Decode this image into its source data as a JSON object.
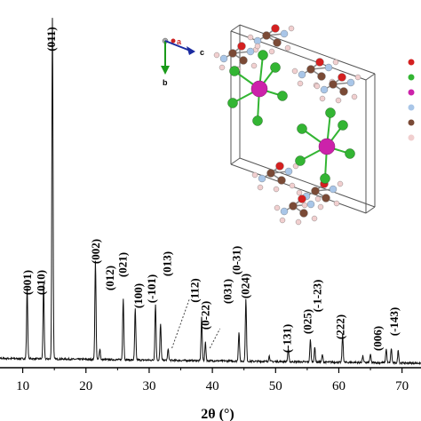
{
  "chart_data": {
    "type": "line",
    "xlabel": "2θ (°)",
    "ylabel": "",
    "xlim": [
      5,
      73
    ],
    "ylim": [
      0,
      100
    ],
    "x_ticks": [
      10,
      20,
      30,
      40,
      50,
      60,
      70
    ],
    "x_tick_labels": [
      "10",
      "20",
      "30",
      "40",
      "50",
      "60",
      "70"
    ],
    "grid": false,
    "peaks": [
      {
        "x": 10.7,
        "y": 19.5,
        "label": "(001)"
      },
      {
        "x": 13.3,
        "y": 20.5,
        "label": "(010)"
      },
      {
        "x": 14.7,
        "y": 94.0,
        "label": "(011)"
      },
      {
        "x": 21.5,
        "y": 27.0,
        "label": "(002)"
      },
      {
        "x": 22.2,
        "y": 3.0,
        "label": ""
      },
      {
        "x": 25.9,
        "y": 17.0,
        "label": "(012)"
      },
      {
        "x": 27.8,
        "y": 14.0,
        "label": "(021)"
      },
      {
        "x": 31.0,
        "y": 15.5,
        "label": "(100)"
      },
      {
        "x": 31.8,
        "y": 10.0,
        "label": "(-101)"
      },
      {
        "x": 33.0,
        "y": 3.0,
        "label": "(013)"
      },
      {
        "x": 38.3,
        "y": 12.0,
        "label": "(112)"
      },
      {
        "x": 38.9,
        "y": 5.0,
        "label": "(0-22)"
      },
      {
        "x": 44.2,
        "y": 8.0,
        "label": "(031)"
      },
      {
        "x": 45.3,
        "y": 17.0,
        "label": "(0-31)"
      },
      {
        "x": 49.0,
        "y": 1.5,
        "label": ""
      },
      {
        "x": 52.0,
        "y": 3.5,
        "label": "(024)"
      },
      {
        "x": 55.5,
        "y": 6.0,
        "label": "(-131)"
      },
      {
        "x": 56.2,
        "y": 4.0,
        "label": "(025)"
      },
      {
        "x": 57.4,
        "y": 2.0,
        "label": ""
      },
      {
        "x": 60.6,
        "y": 7.5,
        "label": "(-1-23)"
      },
      {
        "x": 63.8,
        "y": 1.8,
        "label": ""
      },
      {
        "x": 65.0,
        "y": 2.2,
        "label": ""
      },
      {
        "x": 67.5,
        "y": 3.8,
        "label": "(222)"
      },
      {
        "x": 68.3,
        "y": 4.0,
        "label": "(006)"
      },
      {
        "x": 69.4,
        "y": 3.5,
        "label": "(-143)"
      }
    ],
    "label_order": [
      "(001)",
      "(010)",
      "(011)",
      "(002)",
      "(012)",
      "(021)",
      "(100)",
      "(-101)",
      "(013)",
      "(112)",
      "(0-22)",
      "(031)",
      "(0-31)",
      "(024)",
      "(-131)",
      "(025)",
      "(-1-23)",
      "(222)",
      "(006)",
      "(-143)"
    ]
  },
  "inset": {
    "axes": {
      "a": "a",
      "b": "b",
      "c": "c"
    },
    "legend_colors": [
      "#d42020",
      "#33b533",
      "#cc22aa",
      "#a9c6e8",
      "#7a4a36",
      "#f1cfcf"
    ],
    "atom_colors": {
      "O": "#d42020",
      "Cl": "#33b533",
      "metal": "#cc22aa",
      "N": "#a9c6e8",
      "C": "#7a4a36",
      "H": "#f1cfcf"
    }
  }
}
